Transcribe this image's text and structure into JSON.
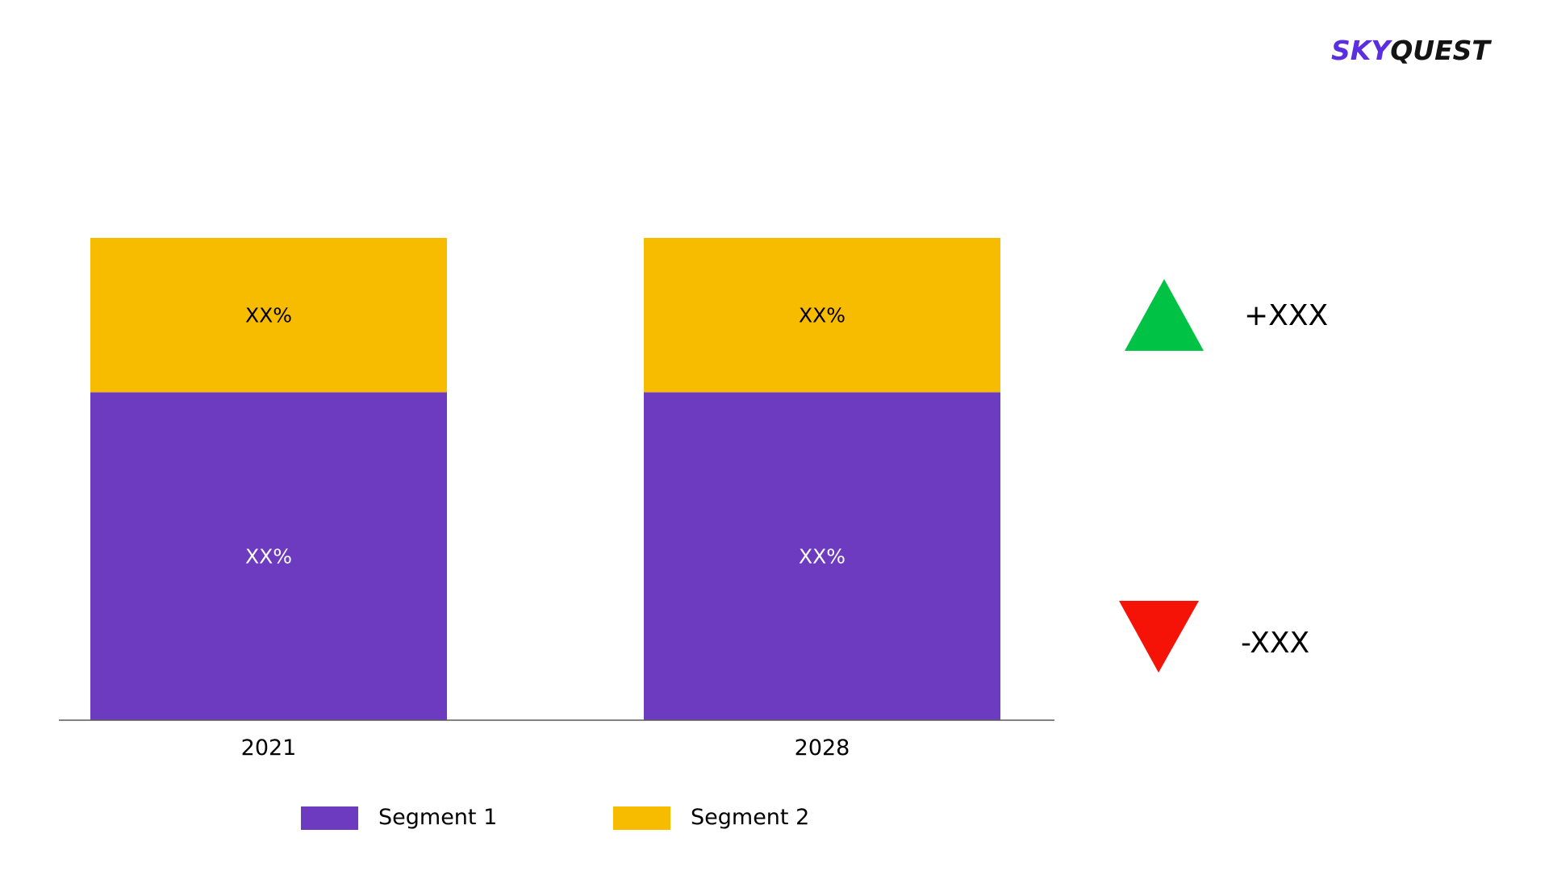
{
  "brand": {
    "name_part1": "SKY",
    "name_part2": "QUEST",
    "color_part1": "#5b2fe0",
    "color_part2": "#141414"
  },
  "chart_data": {
    "type": "bar",
    "stacked": true,
    "categories": [
      "2021",
      "2028"
    ],
    "series": [
      {
        "name": "Segment 1",
        "color": "#6c3bbf",
        "label_color": "#ffffff",
        "values": [
          68,
          68
        ],
        "labels": [
          "XX%",
          "XX%"
        ]
      },
      {
        "name": "Segment 2",
        "color": "#f7bb00",
        "label_color": "#000000",
        "values": [
          32,
          32
        ],
        "labels": [
          "XX%",
          "XX%"
        ]
      }
    ],
    "ylim": [
      0,
      100
    ],
    "grid": false,
    "legend": "bottom"
  },
  "indicators": [
    {
      "name": "increase",
      "icon": "up-triangle-icon",
      "color": "#00c244",
      "text": "+XXX"
    },
    {
      "name": "decrease",
      "icon": "down-triangle-icon",
      "color": "#f51207",
      "text": "-XXX"
    }
  ]
}
